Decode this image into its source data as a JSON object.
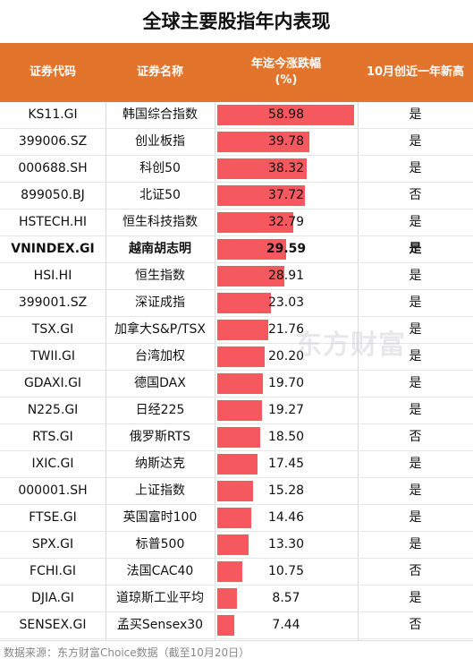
{
  "title": "全球主要股指年内表现",
  "headers": {
    "code": "证券代码",
    "name": "证券名称",
    "change_line1": "年迄今涨跌幅",
    "change_line2": "(%)",
    "new_high": "10月创近一年新高"
  },
  "watermark": "东方财富",
  "source": "数据来源：东方财富Choice数据（截至10月20日）",
  "chart_data": {
    "type": "bar",
    "orientation": "horizontal",
    "title": "全球主要股指年内表现",
    "value_label": "年迄今涨跌幅(%)",
    "xlim": [
      0,
      60
    ],
    "rows": [
      {
        "code": "KS11.GI",
        "name": "韩国综合指数",
        "value": 58.98,
        "value_text": "58.98",
        "new_high": "是",
        "bold": false
      },
      {
        "code": "399006.SZ",
        "name": "创业板指",
        "value": 39.78,
        "value_text": "39.78",
        "new_high": "是",
        "bold": false
      },
      {
        "code": "000688.SH",
        "name": "科创50",
        "value": 38.32,
        "value_text": "38.32",
        "new_high": "是",
        "bold": false
      },
      {
        "code": "899050.BJ",
        "name": "北证50",
        "value": 37.72,
        "value_text": "37.72",
        "new_high": "否",
        "bold": false
      },
      {
        "code": "HSTECH.HI",
        "name": "恒生科技指数",
        "value": 32.79,
        "value_text": "32.79",
        "new_high": "是",
        "bold": false
      },
      {
        "code": "VNINDEX.GI",
        "name": "越南胡志明",
        "value": 29.59,
        "value_text": "29.59",
        "new_high": "是",
        "bold": true
      },
      {
        "code": "HSI.HI",
        "name": "恒生指数",
        "value": 28.91,
        "value_text": "28.91",
        "new_high": "是",
        "bold": false
      },
      {
        "code": "399001.SZ",
        "name": "深证成指",
        "value": 23.03,
        "value_text": "23.03",
        "new_high": "是",
        "bold": false
      },
      {
        "code": "TSX.GI",
        "name": "加拿大S&P/TSX",
        "value": 21.76,
        "value_text": "21.76",
        "new_high": "是",
        "bold": false
      },
      {
        "code": "TWII.GI",
        "name": "台湾加权",
        "value": 20.2,
        "value_text": "20.20",
        "new_high": "是",
        "bold": false
      },
      {
        "code": "GDAXI.GI",
        "name": "德国DAX",
        "value": 19.7,
        "value_text": "19.70",
        "new_high": "是",
        "bold": false
      },
      {
        "code": "N225.GI",
        "name": "日经225",
        "value": 19.27,
        "value_text": "19.27",
        "new_high": "是",
        "bold": false
      },
      {
        "code": "RTS.GI",
        "name": "俄罗斯RTS",
        "value": 18.5,
        "value_text": "18.50",
        "new_high": "否",
        "bold": false
      },
      {
        "code": "IXIC.GI",
        "name": "纳斯达克",
        "value": 17.45,
        "value_text": "17.45",
        "new_high": "是",
        "bold": false
      },
      {
        "code": "000001.SH",
        "name": "上证指数",
        "value": 15.28,
        "value_text": "15.28",
        "new_high": "是",
        "bold": false
      },
      {
        "code": "FTSE.GI",
        "name": "英国富时100",
        "value": 14.46,
        "value_text": "14.46",
        "new_high": "是",
        "bold": false
      },
      {
        "code": "SPX.GI",
        "name": "标普500",
        "value": 13.3,
        "value_text": "13.30",
        "new_high": "是",
        "bold": false
      },
      {
        "code": "FCHI.GI",
        "name": "法国CAC40",
        "value": 10.75,
        "value_text": "10.75",
        "new_high": "否",
        "bold": false
      },
      {
        "code": "DJIA.GI",
        "name": "道琼斯工业平均",
        "value": 8.57,
        "value_text": "8.57",
        "new_high": "是",
        "bold": false
      },
      {
        "code": "SENSEX.GI",
        "name": "孟买Sensex30",
        "value": 7.44,
        "value_text": "7.44",
        "new_high": "否",
        "bold": false
      }
    ],
    "colors": {
      "header": "#e2742c",
      "bar": "#f5585e"
    }
  }
}
